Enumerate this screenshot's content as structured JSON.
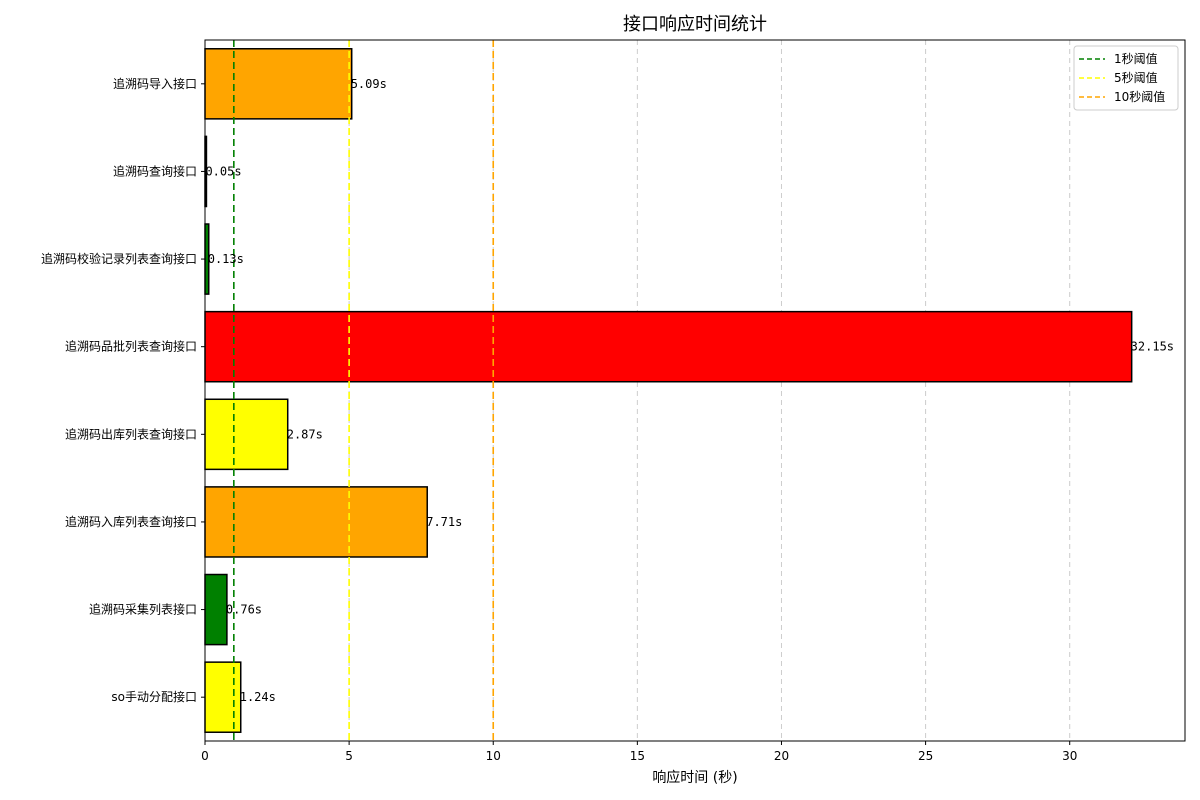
{
  "chart_data": {
    "type": "bar",
    "orientation": "horizontal",
    "title": "接口响应时间统计",
    "xlabel": "响应时间 (秒)",
    "ylabel": "",
    "xlim": [
      0,
      34
    ],
    "x_ticks": [
      0,
      5,
      10,
      15,
      20,
      25,
      30
    ],
    "grid": {
      "x": true,
      "y": false,
      "style": "dashed",
      "color": "#cccccc"
    },
    "categories": [
      "追溯码导入接口",
      "追溯码查询接口",
      "追溯码校验记录列表查询接口",
      "追溯码品批列表查询接口",
      "追溯码出库列表查询接口",
      "追溯码入库列表查询接口",
      "追溯码采集列表接口",
      "so手动分配接口"
    ],
    "values": [
      5.09,
      0.05,
      0.13,
      32.15,
      2.87,
      7.71,
      0.76,
      1.24
    ],
    "value_labels": [
      "5.09s",
      "0.05s",
      "0.13s",
      "32.15s",
      "2.87s",
      "7.71s",
      "0.76s",
      "1.24s"
    ],
    "bar_colors": [
      "#FFA500",
      "#008000",
      "#008000",
      "#FF0000",
      "#FFFF00",
      "#FFA500",
      "#008000",
      "#FFFF00"
    ],
    "bar_edge_color": "#000000",
    "thresholds": [
      {
        "name": "1秒阈值",
        "value": 1,
        "color": "#008000"
      },
      {
        "name": "5秒阈值",
        "value": 5,
        "color": "#FFFF00"
      },
      {
        "name": "10秒阈值",
        "value": 10,
        "color": "#FFA500"
      }
    ],
    "legend_position": "top-right"
  }
}
